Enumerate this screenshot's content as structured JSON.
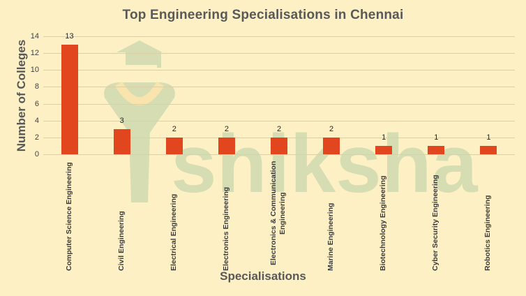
{
  "chart_data": {
    "type": "bar",
    "title": "Top Engineering  Specialisations  in Chennai",
    "xlabel": "Specialisations",
    "ylabel": "Number of Colleges",
    "ylim": [
      0,
      14
    ],
    "yticks": [
      0,
      2,
      4,
      6,
      8,
      10,
      12,
      14
    ],
    "grid": true,
    "legend": "none",
    "data_labels": true,
    "bar_color": "#e2461f",
    "background_color": "#fdf0c4",
    "watermark": "shiksha",
    "categories": [
      "Computer Science Engineering",
      "Civil Engineering",
      "Electrical Engineering",
      "Electronics Engineering",
      "Electronics & Communication Engineering",
      "Marine Engineering",
      "Biotechnology Engineering",
      "Cyber Security Engineering",
      "Robotics Engineering"
    ],
    "values": [
      13,
      3,
      2,
      2,
      2,
      2,
      1,
      1,
      1
    ]
  },
  "labels": {
    "title": "Top Engineering  Specialisations  in Chennai",
    "xlabel": "Specialisations",
    "ylabel": "Number of Colleges"
  }
}
